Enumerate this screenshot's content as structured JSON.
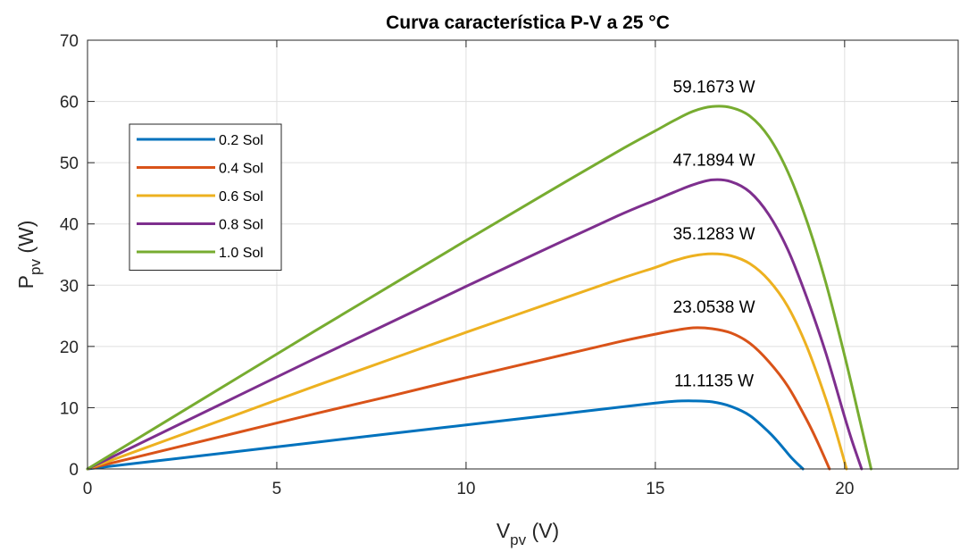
{
  "chart_data": {
    "type": "line",
    "title": "Curva característica P-V a 25 °C",
    "xlabel": {
      "main": "V",
      "sub": "pv",
      "unit": " (V)"
    },
    "ylabel": {
      "main": "P",
      "sub": "pv",
      "unit": " (W)"
    },
    "xlim": [
      0,
      23
    ],
    "ylim": [
      0,
      70
    ],
    "xticks": [
      0,
      5,
      10,
      15,
      20
    ],
    "yticks": [
      0,
      10,
      20,
      30,
      40,
      50,
      60,
      70
    ],
    "grid": true,
    "legend": {
      "position": "left"
    },
    "series": [
      {
        "name": "0.2 Sol",
        "color": "#0072BD",
        "x": [
          0,
          2,
          4,
          6,
          8,
          10,
          12,
          14,
          15,
          15.5,
          16,
          16.5,
          17,
          17.5,
          18,
          18.3,
          18.6,
          18.9
        ],
        "y": [
          0,
          1.44,
          2.88,
          4.32,
          5.76,
          7.18,
          8.6,
          10.05,
          10.75,
          11.05,
          11.11,
          10.95,
          10.2,
          8.7,
          6.0,
          4.0,
          1.8,
          0
        ]
      },
      {
        "name": "0.4 Sol",
        "color": "#D95319",
        "x": [
          0,
          2,
          4,
          6,
          8,
          10,
          12,
          14,
          15,
          15.5,
          16,
          16.5,
          17,
          17.5,
          18,
          18.5,
          19,
          19.3,
          19.6
        ],
        "y": [
          0,
          3.0,
          6.0,
          9.0,
          11.9,
          14.9,
          17.8,
          20.7,
          22.0,
          22.6,
          23.05,
          22.9,
          22.2,
          20.5,
          17.5,
          13.5,
          8.0,
          4.2,
          0
        ]
      },
      {
        "name": "0.6 Sol",
        "color": "#EDB120",
        "x": [
          0,
          2,
          4,
          6,
          8,
          10,
          12,
          14,
          15,
          15.5,
          16,
          16.5,
          17,
          17.5,
          18,
          18.5,
          19,
          19.5,
          19.8,
          20.05
        ],
        "y": [
          0,
          4.5,
          9.0,
          13.5,
          17.9,
          22.3,
          26.6,
          30.9,
          32.9,
          34.0,
          34.8,
          35.13,
          34.8,
          33.5,
          30.8,
          26.5,
          20.0,
          11.5,
          5.5,
          0
        ]
      },
      {
        "name": "0.8 Sol",
        "color": "#7E2F8E",
        "x": [
          0,
          2,
          4,
          6,
          8,
          10,
          12,
          14,
          15,
          15.5,
          16,
          16.5,
          17,
          17.5,
          18,
          18.5,
          19,
          19.5,
          20,
          20.2,
          20.45
        ],
        "y": [
          0,
          6.0,
          12.0,
          18.0,
          23.9,
          29.8,
          35.6,
          41.3,
          43.9,
          45.2,
          46.4,
          47.19,
          46.9,
          45.2,
          41.5,
          35.8,
          28.0,
          19.0,
          8.5,
          4.5,
          0
        ]
      },
      {
        "name": "1.0 Sol",
        "color": "#77AC30",
        "x": [
          0,
          2,
          4,
          6,
          8,
          10,
          12,
          14,
          15,
          15.5,
          16,
          16.5,
          17,
          17.5,
          18,
          18.5,
          19,
          19.5,
          20,
          20.4,
          20.7
        ],
        "y": [
          0,
          7.5,
          15.0,
          22.5,
          29.9,
          37.3,
          44.6,
          51.8,
          55.2,
          56.9,
          58.4,
          59.167,
          59.0,
          57.6,
          54.2,
          48.5,
          40.5,
          30.5,
          18.5,
          8.0,
          0
        ]
      }
    ],
    "annotations": [
      {
        "text": "59.1673 W",
        "x": 16.55,
        "y": 61.5
      },
      {
        "text": "47.1894 W",
        "x": 16.55,
        "y": 49.5
      },
      {
        "text": "35.1283 W",
        "x": 16.55,
        "y": 37.5
      },
      {
        "text": "23.0538 W",
        "x": 16.55,
        "y": 25.5
      },
      {
        "text": "11.1135 W",
        "x": 16.55,
        "y": 13.5
      }
    ]
  }
}
